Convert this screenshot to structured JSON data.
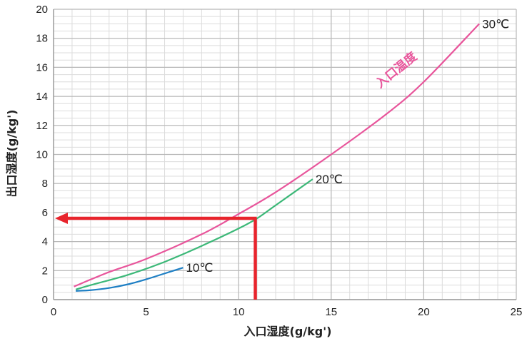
{
  "chart_data": {
    "type": "line",
    "xlabel": "入口湿度(g/kg')",
    "ylabel": "出口湿度(g/kg')",
    "xlim": [
      0,
      25
    ],
    "ylim": [
      0,
      20
    ],
    "x_ticks": [
      0,
      5,
      10,
      15,
      20,
      25
    ],
    "y_ticks": [
      0,
      2,
      4,
      6,
      8,
      10,
      12,
      14,
      16,
      18,
      20
    ],
    "x_minor_step": 1,
    "y_minor_step": 0.5,
    "grid": true,
    "legend": "none",
    "series": [
      {
        "name": "10℃",
        "color": "#1e7fc4",
        "x": [
          1.2,
          2.0,
          3.0,
          4.0,
          5.0,
          6.0,
          7.0
        ],
        "y": [
          0.6,
          0.65,
          0.8,
          1.05,
          1.4,
          1.8,
          2.2
        ]
      },
      {
        "name": "20℃",
        "color": "#3cb878",
        "x": [
          1.2,
          2,
          4,
          6,
          8,
          10,
          11,
          12,
          14
        ],
        "y": [
          0.7,
          1.0,
          1.7,
          2.6,
          3.7,
          4.9,
          5.6,
          6.5,
          8.3
        ]
      },
      {
        "name": "30℃",
        "color": "#e8559b",
        "x": [
          1.1,
          3,
          5,
          8,
          10,
          12,
          15,
          18,
          20,
          23
        ],
        "y": [
          0.9,
          1.9,
          2.8,
          4.5,
          5.9,
          7.4,
          10.0,
          12.8,
          15.0,
          19.0
        ]
      }
    ],
    "annotations": {
      "curve_label": {
        "text": "入口温度",
        "color": "#e8559b"
      },
      "arrow": {
        "color": "#e8242c",
        "x": 10.9,
        "y": 5.6
      }
    }
  }
}
